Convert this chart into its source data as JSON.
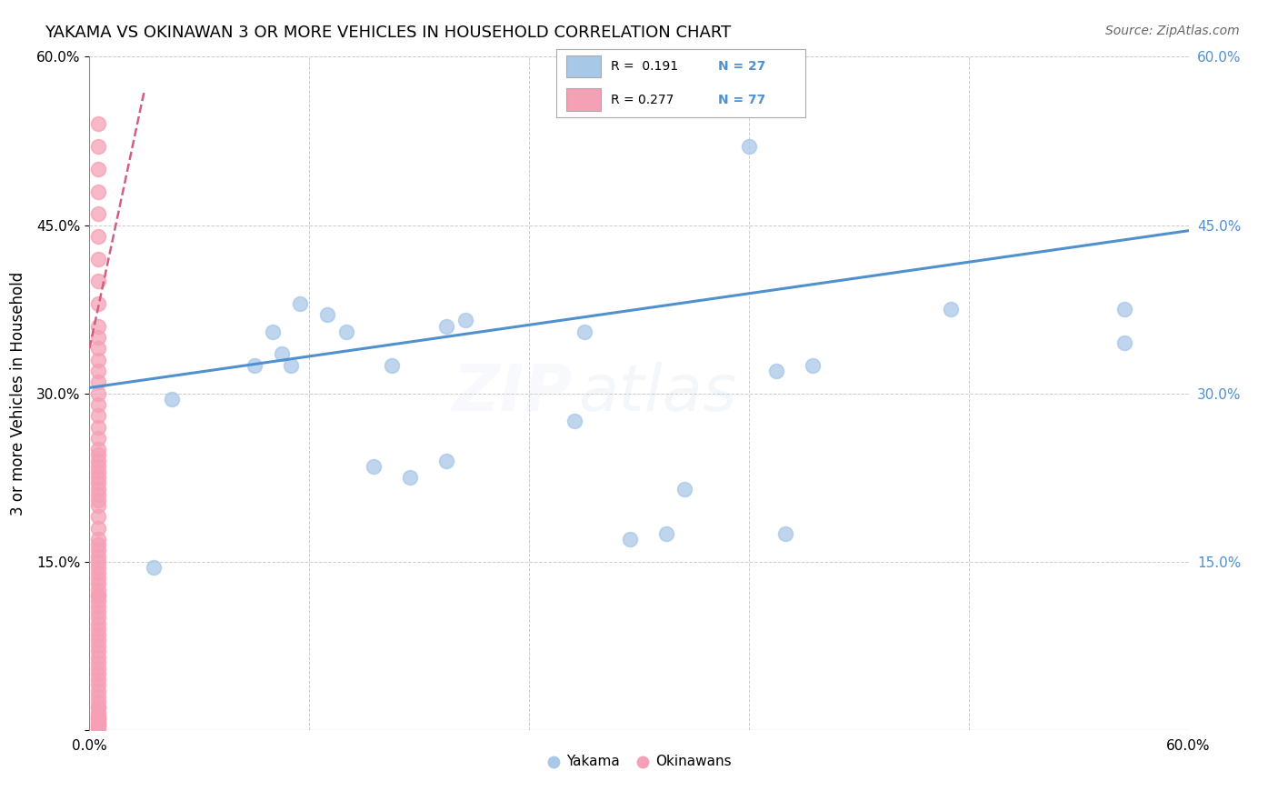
{
  "title": "YAKAMA VS OKINAWAN 3 OR MORE VEHICLES IN HOUSEHOLD CORRELATION CHART",
  "source": "Source: ZipAtlas.com",
  "ylabel": "3 or more Vehicles in Household",
  "xlim": [
    0.0,
    0.6
  ],
  "ylim": [
    0.0,
    0.6
  ],
  "xticks": [
    0.0,
    0.12,
    0.24,
    0.36,
    0.48,
    0.6
  ],
  "yticks": [
    0.0,
    0.15,
    0.3,
    0.45,
    0.6
  ],
  "xtick_labels_left": [
    "0.0%",
    "",
    "",
    "",
    "",
    "60.0%"
  ],
  "ytick_labels_left": [
    "",
    "15.0%",
    "30.0%",
    "45.0%",
    "60.0%"
  ],
  "ytick_labels_right": [
    "",
    "15.0%",
    "30.0%",
    "45.0%",
    "60.0%"
  ],
  "watermark_zip": "ZIP",
  "watermark_atlas": "atlas",
  "legend_r1": "R =  0.191",
  "legend_n1": "N = 27",
  "legend_r2": "R = 0.277",
  "legend_n2": "N = 77",
  "blue_scatter_color": "#a8c8e8",
  "pink_scatter_color": "#f5a0b5",
  "blue_line_color": "#5090d0",
  "pink_line_color": "#d06080",
  "blue_label_color": "#5090d0",
  "grid_color": "#cccccc",
  "watermark_zip_color": "#c8d8e8",
  "watermark_atlas_color": "#b0c8d8",
  "yakama_x": [
    0.035,
    0.045,
    0.09,
    0.1,
    0.105,
    0.11,
    0.115,
    0.13,
    0.14,
    0.155,
    0.165,
    0.175,
    0.195,
    0.195,
    0.205,
    0.265,
    0.27,
    0.295,
    0.315,
    0.325,
    0.375,
    0.395,
    0.36,
    0.47,
    0.565,
    0.565,
    0.38
  ],
  "yakama_y": [
    0.145,
    0.295,
    0.325,
    0.355,
    0.335,
    0.325,
    0.38,
    0.37,
    0.355,
    0.235,
    0.325,
    0.225,
    0.24,
    0.36,
    0.365,
    0.275,
    0.355,
    0.17,
    0.175,
    0.215,
    0.32,
    0.325,
    0.52,
    0.375,
    0.375,
    0.345,
    0.175
  ],
  "okinawan_x": [
    0.005,
    0.005,
    0.005,
    0.005,
    0.005,
    0.005,
    0.005,
    0.005,
    0.005,
    0.005,
    0.005,
    0.005,
    0.005,
    0.005,
    0.005,
    0.005,
    0.005,
    0.005,
    0.005,
    0.005,
    0.005,
    0.005,
    0.005,
    0.005,
    0.005,
    0.005,
    0.005,
    0.005,
    0.005,
    0.005,
    0.005,
    0.005,
    0.005,
    0.005,
    0.005,
    0.005,
    0.005,
    0.005,
    0.005,
    0.005,
    0.005,
    0.005,
    0.005,
    0.005,
    0.005,
    0.005,
    0.005,
    0.005,
    0.005,
    0.005,
    0.005,
    0.005,
    0.005,
    0.005,
    0.005,
    0.005,
    0.005,
    0.005,
    0.005,
    0.005,
    0.005,
    0.005,
    0.005,
    0.005,
    0.005,
    0.005,
    0.005,
    0.005,
    0.005,
    0.005,
    0.005,
    0.005,
    0.005,
    0.005,
    0.005,
    0.005,
    0.005
  ],
  "okinawan_y": [
    0.54,
    0.52,
    0.5,
    0.48,
    0.46,
    0.44,
    0.42,
    0.4,
    0.38,
    0.36,
    0.35,
    0.34,
    0.33,
    0.32,
    0.31,
    0.3,
    0.29,
    0.28,
    0.27,
    0.26,
    0.25,
    0.245,
    0.24,
    0.235,
    0.23,
    0.225,
    0.22,
    0.215,
    0.21,
    0.205,
    0.2,
    0.19,
    0.18,
    0.17,
    0.165,
    0.16,
    0.155,
    0.15,
    0.145,
    0.14,
    0.135,
    0.13,
    0.125,
    0.12,
    0.115,
    0.11,
    0.105,
    0.1,
    0.095,
    0.09,
    0.085,
    0.08,
    0.075,
    0.07,
    0.065,
    0.06,
    0.055,
    0.05,
    0.045,
    0.04,
    0.035,
    0.03,
    0.025,
    0.02,
    0.015,
    0.013,
    0.011,
    0.009,
    0.007,
    0.005,
    0.003,
    0.002,
    0.001,
    0.005,
    0.01,
    0.02,
    0.12
  ],
  "blue_trend_x": [
    0.0,
    0.6
  ],
  "blue_trend_y": [
    0.305,
    0.445
  ],
  "pink_trend_x": [
    0.0,
    0.03
  ],
  "pink_trend_y": [
    0.34,
    0.57
  ],
  "title_fontsize": 13,
  "source_fontsize": 10,
  "tick_fontsize": 11,
  "ylabel_fontsize": 12,
  "watermark_fontsize_zip": 52,
  "watermark_fontsize_atlas": 52,
  "watermark_alpha": 0.13,
  "scatter_size": 130,
  "scatter_alpha": 0.75,
  "scatter_lw": 1.2
}
